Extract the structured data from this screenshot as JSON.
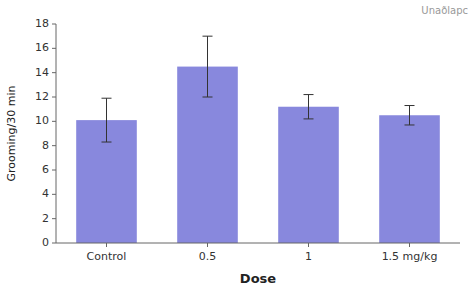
{
  "chart_data": {
    "type": "bar",
    "categories": [
      "Control",
      "0.5",
      "1",
      "1.5 mg/kg"
    ],
    "values": [
      10.1,
      14.5,
      11.2,
      10.5
    ],
    "errors": [
      1.8,
      2.5,
      1.0,
      0.8
    ],
    "color": "#8888dd",
    "xlabel": "Dose",
    "ylabel": "Grooming/30 min",
    "ylim": [
      0,
      18
    ],
    "yticks": [
      0,
      2,
      4,
      6,
      8,
      10,
      12,
      14,
      16,
      18
    ],
    "grid": false,
    "annotations": [
      "Unaðlapc"
    ]
  }
}
